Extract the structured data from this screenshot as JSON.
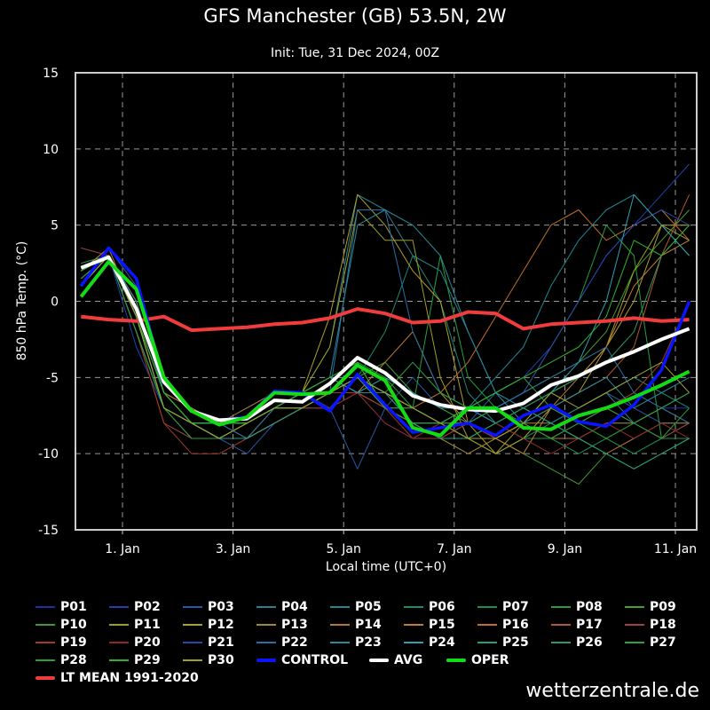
{
  "chart_data": {
    "type": "line",
    "title": "GFS Manchester (GB) 53.5N, 2W",
    "subtitle": "Init: Tue, 31 Dec 2024, 00Z",
    "xlabel": "Local time (UTC+0)",
    "ylabel": "850 hPa Temp. (°C)",
    "ylim": [
      -15,
      15
    ],
    "yticks": [
      -15,
      -10,
      -5,
      0,
      5,
      10,
      15
    ],
    "xlim": [
      "2024-12-31T03:00Z",
      "2025-01-11T09:00Z"
    ],
    "xticks": [
      {
        "date": "2025-01-01T00:00Z",
        "label": "1. Jan"
      },
      {
        "date": "2025-01-03T00:00Z",
        "label": "3. Jan"
      },
      {
        "date": "2025-01-05T00:00Z",
        "label": "5. Jan"
      },
      {
        "date": "2025-01-07T00:00Z",
        "label": "7. Jan"
      },
      {
        "date": "2025-01-09T00:00Z",
        "label": "9. Jan"
      },
      {
        "date": "2025-01-11T00:00Z",
        "label": "11. Jan"
      }
    ],
    "grid": true,
    "legend_position": "bottom",
    "x": [
      "2024-12-31T06:00Z",
      "2024-12-31T18:00Z",
      "2025-01-01T06:00Z",
      "2025-01-01T18:00Z",
      "2025-01-02T06:00Z",
      "2025-01-02T18:00Z",
      "2025-01-03T06:00Z",
      "2025-01-03T18:00Z",
      "2025-01-04T06:00Z",
      "2025-01-04T18:00Z",
      "2025-01-05T06:00Z",
      "2025-01-05T18:00Z",
      "2025-01-06T06:00Z",
      "2025-01-06T18:00Z",
      "2025-01-07T06:00Z",
      "2025-01-07T18:00Z",
      "2025-01-08T06:00Z",
      "2025-01-08T18:00Z",
      "2025-01-09T06:00Z",
      "2025-01-09T18:00Z",
      "2025-01-10T06:00Z",
      "2025-01-10T18:00Z",
      "2025-01-11T06:00Z"
    ],
    "series": [
      {
        "name": "P01",
        "color": "#1f2f9f",
        "width": 1,
        "values": [
          2,
          3,
          -2,
          -7,
          -8,
          -9,
          -9,
          -8,
          -7,
          -7,
          -6,
          -8,
          -9,
          -8,
          -7,
          -8,
          -7,
          -8,
          -9,
          -8,
          -8,
          -7,
          -7
        ]
      },
      {
        "name": "P02",
        "color": "#2040b0",
        "width": 1,
        "values": [
          1.5,
          3,
          -3,
          -7,
          -8,
          -8,
          -7,
          -6,
          -6,
          -7,
          -5,
          -6,
          -7,
          -8,
          -7,
          -6,
          -5,
          -3,
          0,
          3,
          5,
          7,
          9
        ]
      },
      {
        "name": "P03",
        "color": "#2858a8",
        "width": 1,
        "values": [
          2,
          3.5,
          1,
          -6,
          -8,
          -9,
          -10,
          -8,
          -7,
          -7,
          -11,
          -7,
          -5,
          -7,
          -8,
          -6,
          -7,
          -8,
          -7,
          -6,
          -7,
          -8,
          -8
        ]
      },
      {
        "name": "P04",
        "color": "#2a8090",
        "width": 1,
        "values": [
          1,
          3,
          -1,
          -7,
          -8,
          -9,
          -8,
          -7,
          -6,
          -3,
          7,
          6,
          3,
          2,
          -2,
          -6,
          -7,
          -8,
          -7,
          -6,
          -8,
          -7,
          -6
        ]
      },
      {
        "name": "P05",
        "color": "#208890",
        "width": 1,
        "values": [
          2,
          3,
          0,
          -6,
          -7,
          -8,
          -8,
          -7,
          -6,
          -5,
          -6,
          -6,
          -7,
          -8,
          -7,
          -5,
          -3,
          1,
          4,
          6,
          7,
          5,
          3
        ]
      },
      {
        "name": "P06",
        "color": "#1a8a70",
        "width": 1,
        "values": [
          1,
          3,
          -2,
          -7,
          -8,
          -8,
          -9,
          -8,
          -7,
          -6,
          -5,
          -2,
          3,
          0,
          -6,
          -8,
          -9,
          -8,
          -7,
          -6,
          -5,
          -6,
          -7
        ]
      },
      {
        "name": "P07",
        "color": "#1a9050",
        "width": 1,
        "values": [
          2,
          3,
          -1,
          -7,
          -9,
          -9,
          -8,
          -7,
          -6,
          -6,
          -6,
          -7,
          -8,
          -9,
          -9,
          -10,
          -9,
          -9,
          -10,
          -9,
          -10,
          -9,
          -9
        ]
      },
      {
        "name": "P08",
        "color": "#22a040",
        "width": 1,
        "values": [
          2.5,
          3,
          -2,
          -7,
          -8,
          -8,
          -8,
          -7,
          -6,
          -6,
          -4,
          -7,
          -7,
          3,
          -5,
          -7,
          -6,
          -3,
          0,
          5,
          3,
          -9,
          -8
        ]
      },
      {
        "name": "P09",
        "color": "#40a030",
        "width": 1,
        "values": [
          2,
          3,
          0,
          -6,
          -8,
          -9,
          -9,
          -8,
          -7,
          -6,
          -5,
          -4,
          -6,
          -7,
          -8,
          -7,
          -6,
          -5,
          -4,
          -2,
          2,
          4,
          6
        ]
      },
      {
        "name": "P10",
        "color": "#3a9a2a",
        "width": 1,
        "values": [
          1,
          3,
          -1,
          -7,
          -8,
          -8,
          -8,
          -7,
          -7,
          -6,
          -5,
          -6,
          -7,
          -8,
          -9,
          -9,
          -10,
          -11,
          -12,
          -10,
          -11,
          -10,
          -9
        ]
      },
      {
        "name": "P11",
        "color": "#a0a020",
        "width": 1,
        "values": [
          2,
          3,
          -1,
          -6,
          -8,
          -9,
          -8,
          -7,
          -6,
          -3,
          6,
          4,
          4,
          -5,
          -9,
          -10,
          -8,
          -6,
          -5,
          -3,
          2,
          5,
          4
        ]
      },
      {
        "name": "P12",
        "color": "#b0a028",
        "width": 1,
        "values": [
          2,
          3,
          0,
          -6,
          -8,
          -9,
          -9,
          -7,
          -6,
          -1,
          7,
          5,
          2,
          0,
          -8,
          -10,
          -9,
          -7,
          -6,
          -3,
          0,
          5,
          5
        ]
      },
      {
        "name": "P13",
        "color": "#a08a30",
        "width": 1,
        "values": [
          1.5,
          3,
          -1,
          -7,
          -8,
          -9,
          -8,
          -7,
          -6,
          -6,
          -5,
          -7,
          -8,
          -9,
          -10,
          -9,
          -8,
          -8,
          -9,
          -8,
          -8,
          -7,
          -8
        ]
      },
      {
        "name": "P14",
        "color": "#b07a30",
        "width": 1,
        "values": [
          2,
          3,
          -1,
          -6,
          -8,
          -8,
          -7,
          -6,
          -6,
          -6,
          -5,
          -6,
          -7,
          -8,
          -8,
          -9,
          -8,
          -9,
          -9,
          -10,
          -9,
          -8,
          -8
        ]
      },
      {
        "name": "P15",
        "color": "#c08030",
        "width": 1,
        "values": [
          2,
          3.5,
          -1,
          -7,
          -8,
          -9,
          -9,
          -8,
          -7,
          -6,
          -6,
          -4,
          -2,
          -6,
          -8,
          -9,
          -10,
          -7,
          -5,
          -3,
          1,
          3,
          4
        ]
      },
      {
        "name": "P16",
        "color": "#c07028",
        "width": 1,
        "values": [
          1,
          3,
          0,
          -6,
          -7,
          -8,
          -8,
          -7,
          -6,
          -6,
          -5,
          -6,
          -7,
          -6,
          -4,
          -1,
          2,
          5,
          6,
          4,
          5,
          6,
          4
        ]
      },
      {
        "name": "P17",
        "color": "#b05a2a",
        "width": 1,
        "values": [
          2,
          3,
          -1,
          -7,
          -8,
          -8,
          -8,
          -7,
          -6,
          -6,
          -6,
          -7,
          -8,
          -8,
          -9,
          -9,
          -8,
          -7,
          -6,
          -5,
          -3,
          3,
          7
        ]
      },
      {
        "name": "P18",
        "color": "#a04040",
        "width": 1,
        "values": [
          3.5,
          3,
          -2,
          -8,
          -9,
          -9,
          -9,
          -8,
          -7,
          -7,
          -6,
          -7,
          -8,
          -9,
          -8,
          -7,
          -8,
          -9,
          -8,
          -7,
          -8,
          -9,
          -8
        ]
      },
      {
        "name": "P19",
        "color": "#a03a2a",
        "width": 1,
        "values": [
          2,
          3,
          -2,
          -8,
          -10,
          -10,
          -9,
          -8,
          -7,
          -6,
          -6,
          -7,
          -9,
          -9,
          -8,
          -9,
          -8,
          -7,
          -8,
          -7,
          -6,
          -4,
          0
        ]
      },
      {
        "name": "P20",
        "color": "#902828",
        "width": 1,
        "values": [
          2,
          3,
          -1,
          -7,
          -9,
          -9,
          -8,
          -7,
          -7,
          -7,
          -6,
          -8,
          -9,
          -8,
          -9,
          -8,
          -9,
          -10,
          -9,
          -8,
          -9,
          -8,
          -9
        ]
      },
      {
        "name": "P21",
        "color": "#2848a8",
        "width": 1,
        "values": [
          1,
          3,
          -1,
          -6,
          -8,
          -8,
          -8,
          -7,
          -6,
          -6,
          -5,
          -6,
          -8,
          -8,
          -8,
          -7,
          -6,
          -3,
          0,
          3,
          5,
          6,
          5
        ]
      },
      {
        "name": "P22",
        "color": "#2a70a8",
        "width": 1,
        "values": [
          2,
          3,
          -1,
          -7,
          -8,
          -8,
          -9,
          -7,
          -6,
          -6,
          6,
          6,
          -2,
          -6,
          -7,
          -7,
          -6,
          -5,
          -4,
          -3,
          -6,
          -7,
          -8
        ]
      },
      {
        "name": "P23",
        "color": "#288a9a",
        "width": 1,
        "values": [
          1.5,
          3,
          0,
          -6,
          -8,
          -8,
          -8,
          -7,
          -6,
          -5,
          5,
          6,
          5,
          3,
          -2,
          -6,
          -8,
          -7,
          -6,
          -5,
          -7,
          -6,
          -5
        ]
      },
      {
        "name": "P24",
        "color": "#30a0b0",
        "width": 1,
        "values": [
          2,
          3,
          -1,
          -7,
          -8,
          -9,
          -8,
          -7,
          -6,
          -5,
          -6,
          -5,
          -6,
          -7,
          -7,
          -8,
          -7,
          -6,
          -4,
          0,
          7,
          5,
          3
        ]
      },
      {
        "name": "P25",
        "color": "#20a080",
        "width": 1,
        "values": [
          1,
          3,
          -2,
          -7,
          -8,
          -9,
          -9,
          -8,
          -7,
          -6,
          -5,
          -6,
          -8,
          -9,
          -9,
          -8,
          -7,
          -8,
          -9,
          -10,
          -11,
          -10,
          -9
        ]
      },
      {
        "name": "P26",
        "color": "#2a9a60",
        "width": 1,
        "values": [
          2,
          3,
          -1,
          -6,
          -8,
          -8,
          -8,
          -7,
          -6,
          -6,
          -5,
          -7,
          -7,
          -8,
          -9,
          -8,
          -7,
          -6,
          -5,
          -4,
          -2,
          3,
          5
        ]
      },
      {
        "name": "P27",
        "color": "#30a040",
        "width": 1,
        "values": [
          2,
          3,
          -1,
          -7,
          -8,
          -8,
          -8,
          -7,
          -7,
          -6,
          -5,
          -6,
          -4,
          -6,
          -7,
          -6,
          -5,
          -7,
          -8,
          -7,
          -8,
          -7,
          -6
        ]
      },
      {
        "name": "P28",
        "color": "#28a038",
        "width": 1,
        "values": [
          1.5,
          3,
          -2,
          -7,
          -9,
          -9,
          -8,
          -7,
          -6,
          -6,
          -4,
          -5,
          -7,
          -8,
          -8,
          -7,
          -8,
          -9,
          -8,
          -9,
          -8,
          -9,
          -7
        ]
      },
      {
        "name": "P29",
        "color": "#30b030",
        "width": 1,
        "values": [
          2,
          3,
          -1,
          -6,
          -8,
          -8,
          -8,
          -7,
          -6,
          -5,
          -4,
          -7,
          -8,
          -8,
          -7,
          -6,
          -5,
          -4,
          -3,
          -1,
          4,
          3,
          5
        ]
      },
      {
        "name": "P30",
        "color": "#a0a030",
        "width": 1,
        "values": [
          1,
          3,
          -1,
          -7,
          -8,
          -9,
          -8,
          -7,
          -7,
          -6,
          -5,
          -6,
          -7,
          -8,
          -9,
          -9,
          -8,
          -6,
          -7,
          -6,
          -5,
          -4,
          -6
        ]
      },
      {
        "name": "CONTROL",
        "color": "#0a14ff",
        "width": 3.5,
        "values": [
          1.0,
          3.5,
          1.5,
          -5.3,
          -7.2,
          -7.8,
          -7.6,
          -5.9,
          -6.0,
          -7.2,
          -4.8,
          -6.8,
          -8.6,
          -8.3,
          -8.0,
          -8.8,
          -7.5,
          -6.8,
          -7.9,
          -8.2,
          -6.8,
          -4.5,
          0.0
        ]
      },
      {
        "name": "AVG",
        "color": "#ffffff",
        "width": 4,
        "values": [
          2.2,
          2.9,
          -0.5,
          -5.3,
          -7.2,
          -7.8,
          -7.7,
          -6.5,
          -6.6,
          -5.4,
          -3.7,
          -4.7,
          -6.2,
          -6.8,
          -7.1,
          -7.2,
          -6.7,
          -5.5,
          -4.9,
          -4.0,
          -3.3,
          -2.5,
          -1.8
        ]
      },
      {
        "name": "OPER",
        "color": "#14dc14",
        "width": 4,
        "values": [
          0.3,
          2.6,
          0.8,
          -5.0,
          -7.2,
          -8.1,
          -7.6,
          -6.0,
          -6.1,
          -6.0,
          -4.2,
          -5.2,
          -8.3,
          -8.8,
          -7.0,
          -7.0,
          -8.3,
          -8.4,
          -7.5,
          -7.0,
          -6.3,
          -5.5,
          -4.6
        ]
      },
      {
        "name": "LT MEAN 1991-2020",
        "color": "#f03c3c",
        "width": 4,
        "values": [
          -1.0,
          -1.2,
          -1.3,
          -1.0,
          -1.9,
          -1.8,
          -1.7,
          -1.5,
          -1.4,
          -1.1,
          -0.5,
          -0.8,
          -1.4,
          -1.3,
          -0.7,
          -0.8,
          -1.8,
          -1.5,
          -1.4,
          -1.3,
          -1.1,
          -1.3,
          -1.2
        ]
      }
    ]
  },
  "watermark": "wetterzentrale.de"
}
